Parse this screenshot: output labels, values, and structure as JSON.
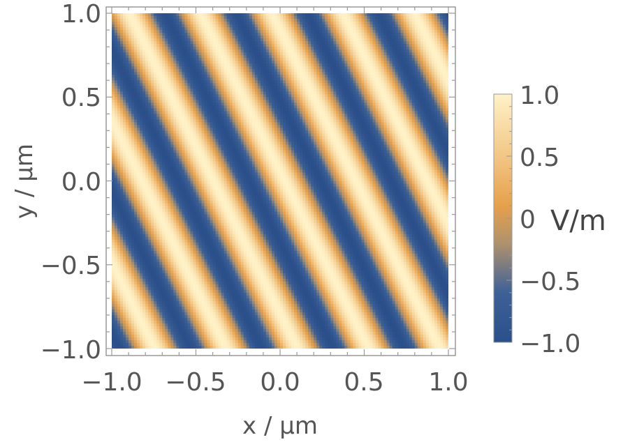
{
  "chart_data": {
    "type": "heatmap",
    "title": "",
    "xlabel": "x / μm",
    "ylabel": "y / μm",
    "xlim": [
      -1.0,
      1.0
    ],
    "ylim": [
      -1.0,
      1.0
    ],
    "x_ticks": [
      -1.0,
      -0.5,
      0.0,
      0.5,
      1.0
    ],
    "y_ticks": [
      -1.0,
      -0.5,
      0.0,
      0.5,
      1.0
    ],
    "x_tick_labels": [
      "−1.0",
      "−0.5",
      "0.0",
      "0.5",
      "1.0"
    ],
    "y_tick_labels": [
      "−1.0",
      "−0.5",
      "0.0",
      "0.5",
      "1.0"
    ],
    "field": {
      "expression": "cos(kx*x + ky*y + phase)",
      "kx": 14.84,
      "ky": 7.42,
      "phase": -0.4
    },
    "colorbar": {
      "range": [
        -1.0,
        1.0
      ],
      "ticks": [
        1.0,
        0.5,
        0,
        -0.5,
        -1.0
      ],
      "tick_labels": [
        "1.0",
        "0.5",
        "0",
        "−0.5",
        "−1.0"
      ],
      "unit": "V/m",
      "colors": [
        "#2b4f8a",
        "#e6a04c",
        "#fff2c8"
      ]
    },
    "grid": false
  }
}
